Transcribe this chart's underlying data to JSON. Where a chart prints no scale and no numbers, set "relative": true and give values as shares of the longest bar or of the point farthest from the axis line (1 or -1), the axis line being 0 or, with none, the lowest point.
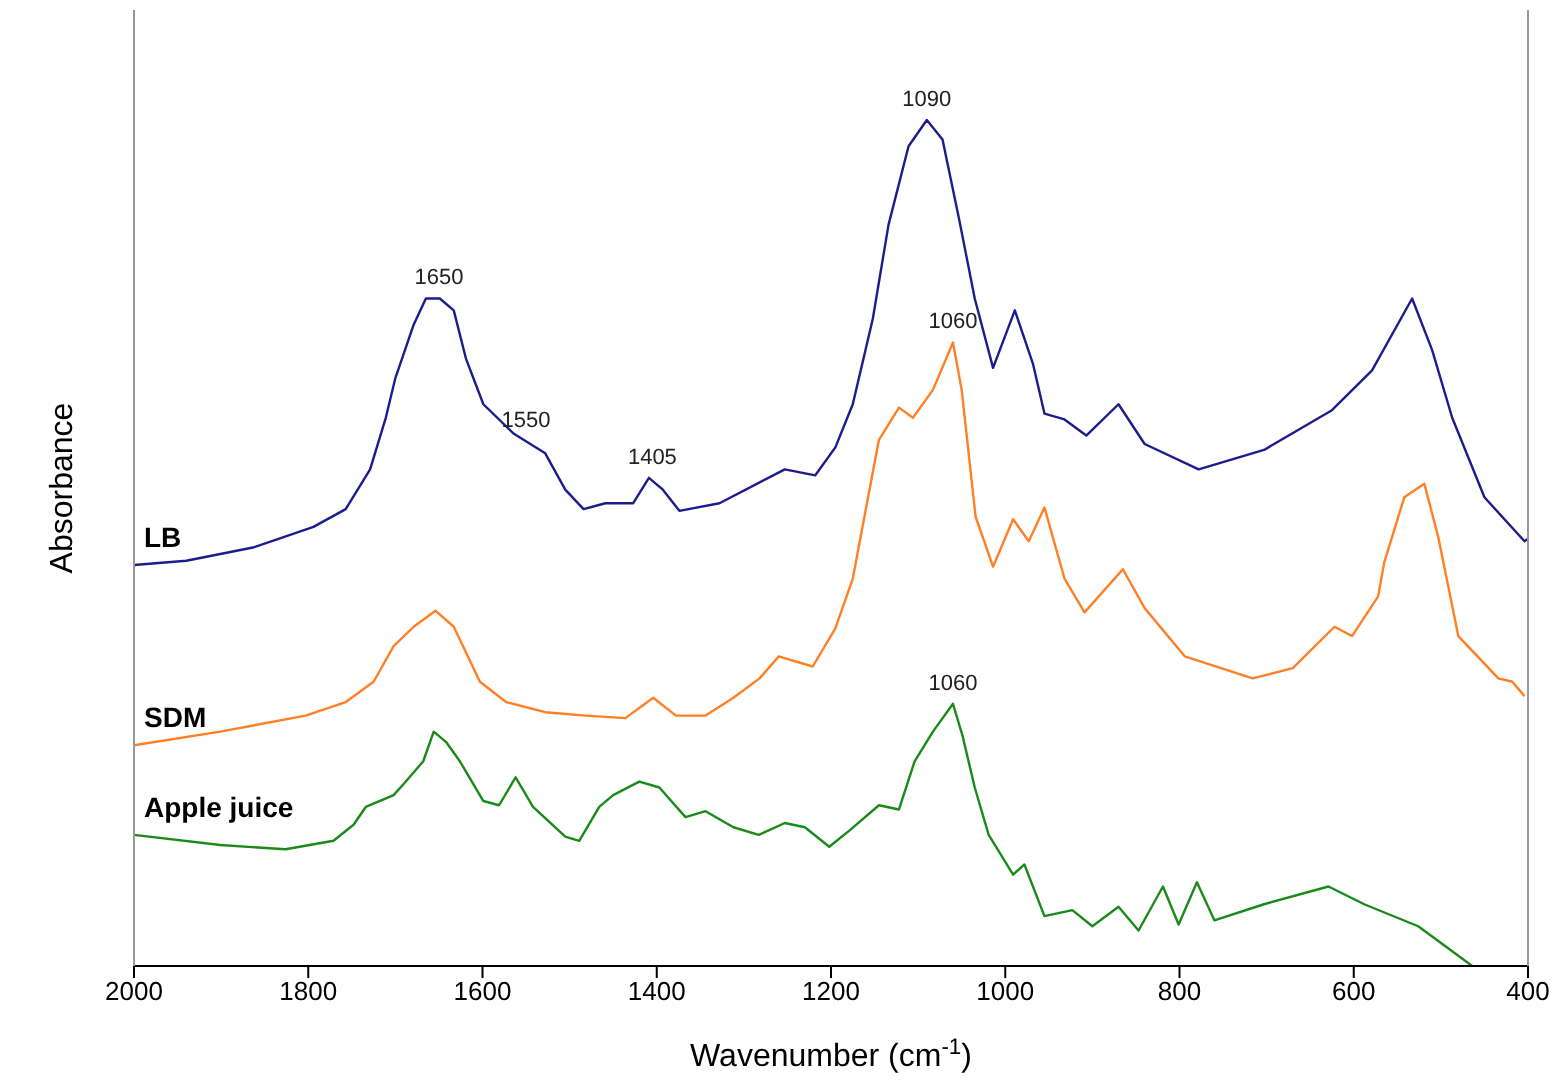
{
  "chart_data": {
    "type": "line",
    "xlabel": "Wavenumber (cm$^{-1}$)",
    "ylabel": "Absorbance",
    "relative": true,
    "xlim": [
      2000,
      400
    ],
    "xticks": [
      2000,
      1800,
      1600,
      1400,
      1200,
      1000,
      800,
      600,
      400
    ],
    "series": [
      {
        "name": "LB",
        "color": "#1c1c8c",
        "x": [
          2000,
          1940,
          1862,
          1794,
          1757,
          1729,
          1711,
          1700,
          1679,
          1665,
          1649,
          1633,
          1619,
          1599,
          1564,
          1528,
          1505,
          1484,
          1459,
          1427,
          1409,
          1393,
          1374,
          1328,
          1253,
          1218,
          1195,
          1175,
          1152,
          1134,
          1111,
          1090,
          1072,
          1053,
          1035,
          1014,
          989,
          968,
          955,
          932,
          907,
          870,
          840,
          778,
          703,
          625,
          579,
          533,
          510,
          487,
          450,
          404,
          400
        ],
        "values": [
          0.474,
          0.479,
          0.495,
          0.519,
          0.54,
          0.587,
          0.648,
          0.695,
          0.758,
          0.789,
          0.789,
          0.775,
          0.718,
          0.664,
          0.629,
          0.606,
          0.563,
          0.54,
          0.547,
          0.547,
          0.577,
          0.563,
          0.538,
          0.547,
          0.587,
          0.58,
          0.613,
          0.664,
          0.765,
          0.876,
          0.969,
          1,
          0.977,
          0.883,
          0.789,
          0.707,
          0.775,
          0.711,
          0.653,
          0.646,
          0.627,
          0.664,
          0.617,
          0.587,
          0.61,
          0.657,
          0.704,
          0.789,
          0.728,
          0.648,
          0.554,
          0.502,
          0.505
        ]
      },
      {
        "name": "SDM",
        "color": "#ff7f27",
        "x": [
          2000,
          1901,
          1803,
          1757,
          1725,
          1702,
          1679,
          1654,
          1633,
          1603,
          1573,
          1528,
          1482,
          1436,
          1404,
          1378,
          1344,
          1312,
          1282,
          1260,
          1221,
          1195,
          1175,
          1145,
          1122,
          1106,
          1083,
          1060,
          1050,
          1034,
          1014,
          991,
          973,
          955,
          932,
          909,
          865,
          840,
          794,
          716,
          670,
          622,
          602,
          572,
          565,
          542,
          519,
          503,
          480,
          434,
          418,
          404
        ],
        "values": [
          0.261,
          0.277,
          0.296,
          0.312,
          0.336,
          0.378,
          0.401,
          0.42,
          0.401,
          0.336,
          0.312,
          0.3,
          0.296,
          0.293,
          0.317,
          0.296,
          0.296,
          0.317,
          0.34,
          0.366,
          0.354,
          0.399,
          0.458,
          0.622,
          0.66,
          0.648,
          0.681,
          0.737,
          0.681,
          0.531,
          0.472,
          0.528,
          0.502,
          0.542,
          0.458,
          0.418,
          0.469,
          0.423,
          0.366,
          0.34,
          0.352,
          0.401,
          0.39,
          0.437,
          0.477,
          0.554,
          0.57,
          0.507,
          0.39,
          0.34,
          0.336,
          0.319
        ]
      },
      {
        "name": "Apple juice",
        "color": "#1a8a1a",
        "x": [
          2000,
          1901,
          1826,
          1771,
          1748,
          1734,
          1702,
          1688,
          1668,
          1656,
          1642,
          1626,
          1599,
          1581,
          1562,
          1542,
          1505,
          1489,
          1466,
          1450,
          1420,
          1397,
          1367,
          1344,
          1312,
          1283,
          1253,
          1230,
          1202,
          1179,
          1145,
          1122,
          1104,
          1083,
          1060,
          1049,
          1035,
          1019,
          991,
          978,
          955,
          923,
          900,
          870,
          847,
          819,
          801,
          780,
          760,
          703,
          629,
          588,
          526,
          464
        ],
        "values": [
          0.155,
          0.143,
          0.138,
          0.148,
          0.167,
          0.188,
          0.202,
          0.218,
          0.242,
          0.277,
          0.265,
          0.242,
          0.195,
          0.19,
          0.223,
          0.188,
          0.153,
          0.148,
          0.188,
          0.202,
          0.218,
          0.211,
          0.176,
          0.183,
          0.164,
          0.155,
          0.169,
          0.164,
          0.141,
          0.16,
          0.19,
          0.185,
          0.242,
          0.277,
          0.31,
          0.272,
          0.211,
          0.155,
          0.108,
          0.12,
          0.059,
          0.066,
          0.047,
          0.07,
          0.042,
          0.094,
          0.049,
          0.099,
          0.054,
          0.073,
          0.094,
          0.073,
          0.047,
          0
        ]
      }
    ],
    "annotations": [
      {
        "text": "1650",
        "x": 1650,
        "y": 0.789
      },
      {
        "text": "1550",
        "x": 1550,
        "y": 0.62
      },
      {
        "text": "1405",
        "x": 1405,
        "y": 0.577
      },
      {
        "text": "1090",
        "x": 1090,
        "y": 1
      },
      {
        "text": "1060",
        "x": 1060,
        "y": 0.737
      },
      {
        "text": "1060",
        "x": 1060,
        "y": 0.31
      }
    ]
  }
}
